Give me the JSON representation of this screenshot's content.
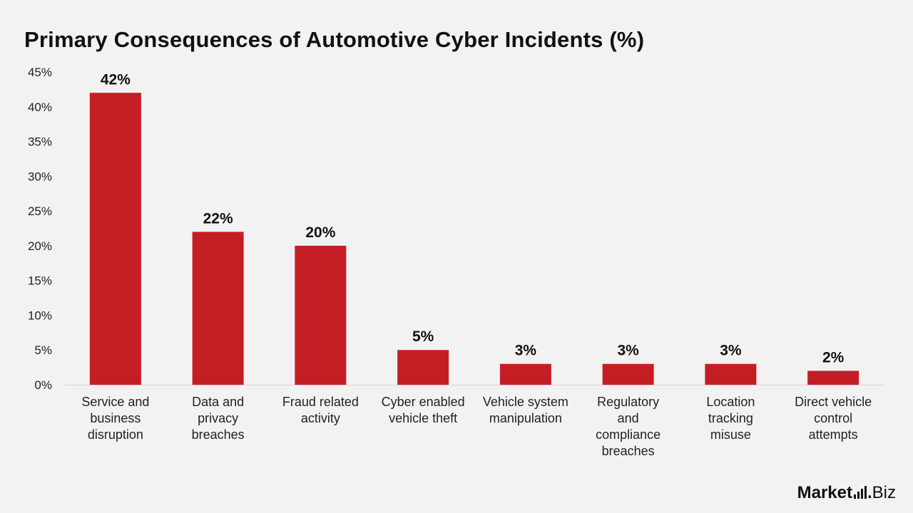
{
  "chart_data": {
    "type": "bar",
    "title": "Primary Consequences of Automotive Cyber Incidents (%)",
    "categories": [
      [
        "Service and",
        "business",
        "disruption"
      ],
      [
        "Data and",
        "privacy",
        "breaches"
      ],
      [
        "Fraud related",
        "activity"
      ],
      [
        "Cyber enabled",
        "vehicle theft"
      ],
      [
        "Vehicle system",
        "manipulation"
      ],
      [
        "Regulatory",
        "and",
        "compliance",
        "breaches"
      ],
      [
        "Location",
        "tracking",
        "misuse"
      ],
      [
        "Direct vehicle",
        "control",
        "attempts"
      ]
    ],
    "values": [
      42,
      22,
      20,
      5,
      3,
      3,
      3,
      2
    ],
    "value_labels": [
      "42%",
      "22%",
      "20%",
      "5%",
      "3%",
      "3%",
      "3%",
      "2%"
    ],
    "ylim": [
      0,
      45
    ],
    "yticks": [
      0,
      5,
      10,
      15,
      20,
      25,
      30,
      35,
      40,
      45
    ],
    "ytick_labels": [
      "0%",
      "5%",
      "10%",
      "15%",
      "20%",
      "25%",
      "30%",
      "35%",
      "40%",
      "45%"
    ],
    "xlabel": "",
    "ylabel": "",
    "grid": false,
    "bar_color": "#c41e24"
  },
  "logo": {
    "market": "Market",
    "dot": ".",
    "biz": "Biz"
  }
}
